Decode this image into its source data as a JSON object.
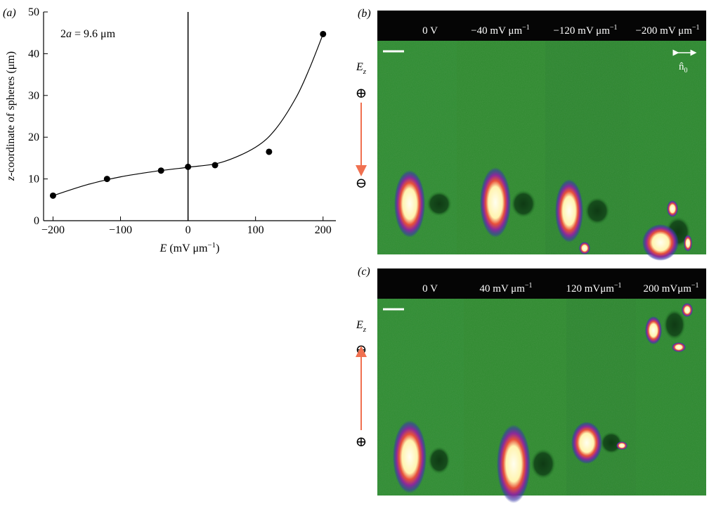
{
  "chart_data": {
    "type": "scatter",
    "panel_label": "(a)",
    "x": [
      -200,
      -120,
      -40,
      0,
      40,
      120,
      200
    ],
    "values": [
      6,
      10,
      12,
      12.9,
      13.3,
      16.5,
      44.7
    ],
    "color": "#000000",
    "fit": {
      "x": [
        -200,
        -150,
        -100,
        -50,
        0,
        50,
        100,
        130,
        160,
        180,
        200
      ],
      "values": [
        6,
        8.6,
        10.5,
        11.8,
        12.8,
        14,
        17.6,
        22,
        29.5,
        36.5,
        44.7
      ]
    },
    "xlim": [
      -214,
      219
    ],
    "ylim": [
      0,
      50
    ],
    "xticks": [
      {
        "value": -200,
        "label": "−200"
      },
      {
        "value": -100,
        "label": "−100"
      },
      0,
      100,
      200
    ],
    "yticks": [
      0,
      10,
      20,
      30,
      40,
      50
    ],
    "vline": 0,
    "annotation": [
      "2",
      "a",
      " = 9.6 μm"
    ],
    "xlabel": [
      "E",
      " (mV μm",
      "−1",
      ")"
    ],
    "ylabel": [
      "z",
      "-coordinate of spheres (μm)"
    ]
  },
  "panels": [
    {
      "label": "(b)",
      "columns": [
        {
          "main": "0 V"
        },
        {
          "main": "−40 mV μm",
          "sup": "−1"
        },
        {
          "main": "−120 mV μm",
          "sup": "−1"
        },
        {
          "main": "−200 mV μm",
          "sup": "−1"
        }
      ],
      "field": {
        "symbol": "E",
        "sub": "z",
        "top": "⊕",
        "bottom": "⊖"
      },
      "director": {
        "symbol": "n̂",
        "sub": "0"
      }
    },
    {
      "label": "(c)",
      "columns": [
        {
          "main": "0 V"
        },
        {
          "main": "40 mV μm",
          "sup": "−1"
        },
        {
          "main": "120 mVμm",
          "sup": "−1"
        },
        {
          "main": "200 mVμm",
          "sup": "−1"
        }
      ],
      "field": {
        "symbol": "E",
        "sub": "z",
        "top": "⊖",
        "bottom": "⊕"
      }
    }
  ]
}
